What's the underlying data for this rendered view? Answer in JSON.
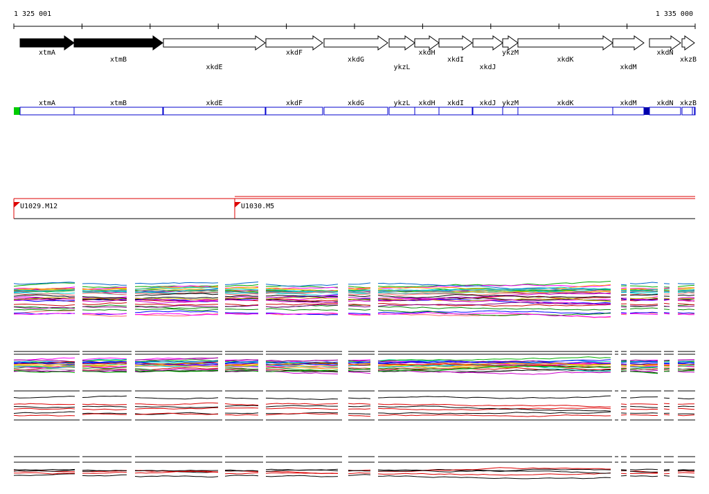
{
  "scale": {
    "start": "1 325 001",
    "end": "1 335 000"
  },
  "genes": [
    "xtmA",
    "xtmB",
    "xkdE",
    "xkdF",
    "xkdG",
    "ykzL",
    "xkdH",
    "xkdI",
    "xkdJ",
    "ykzM",
    "xkdK",
    "xkdM",
    "xkdN",
    "xkzB"
  ],
  "clones": [
    "U1029.M12",
    "U1030.M5"
  ]
}
